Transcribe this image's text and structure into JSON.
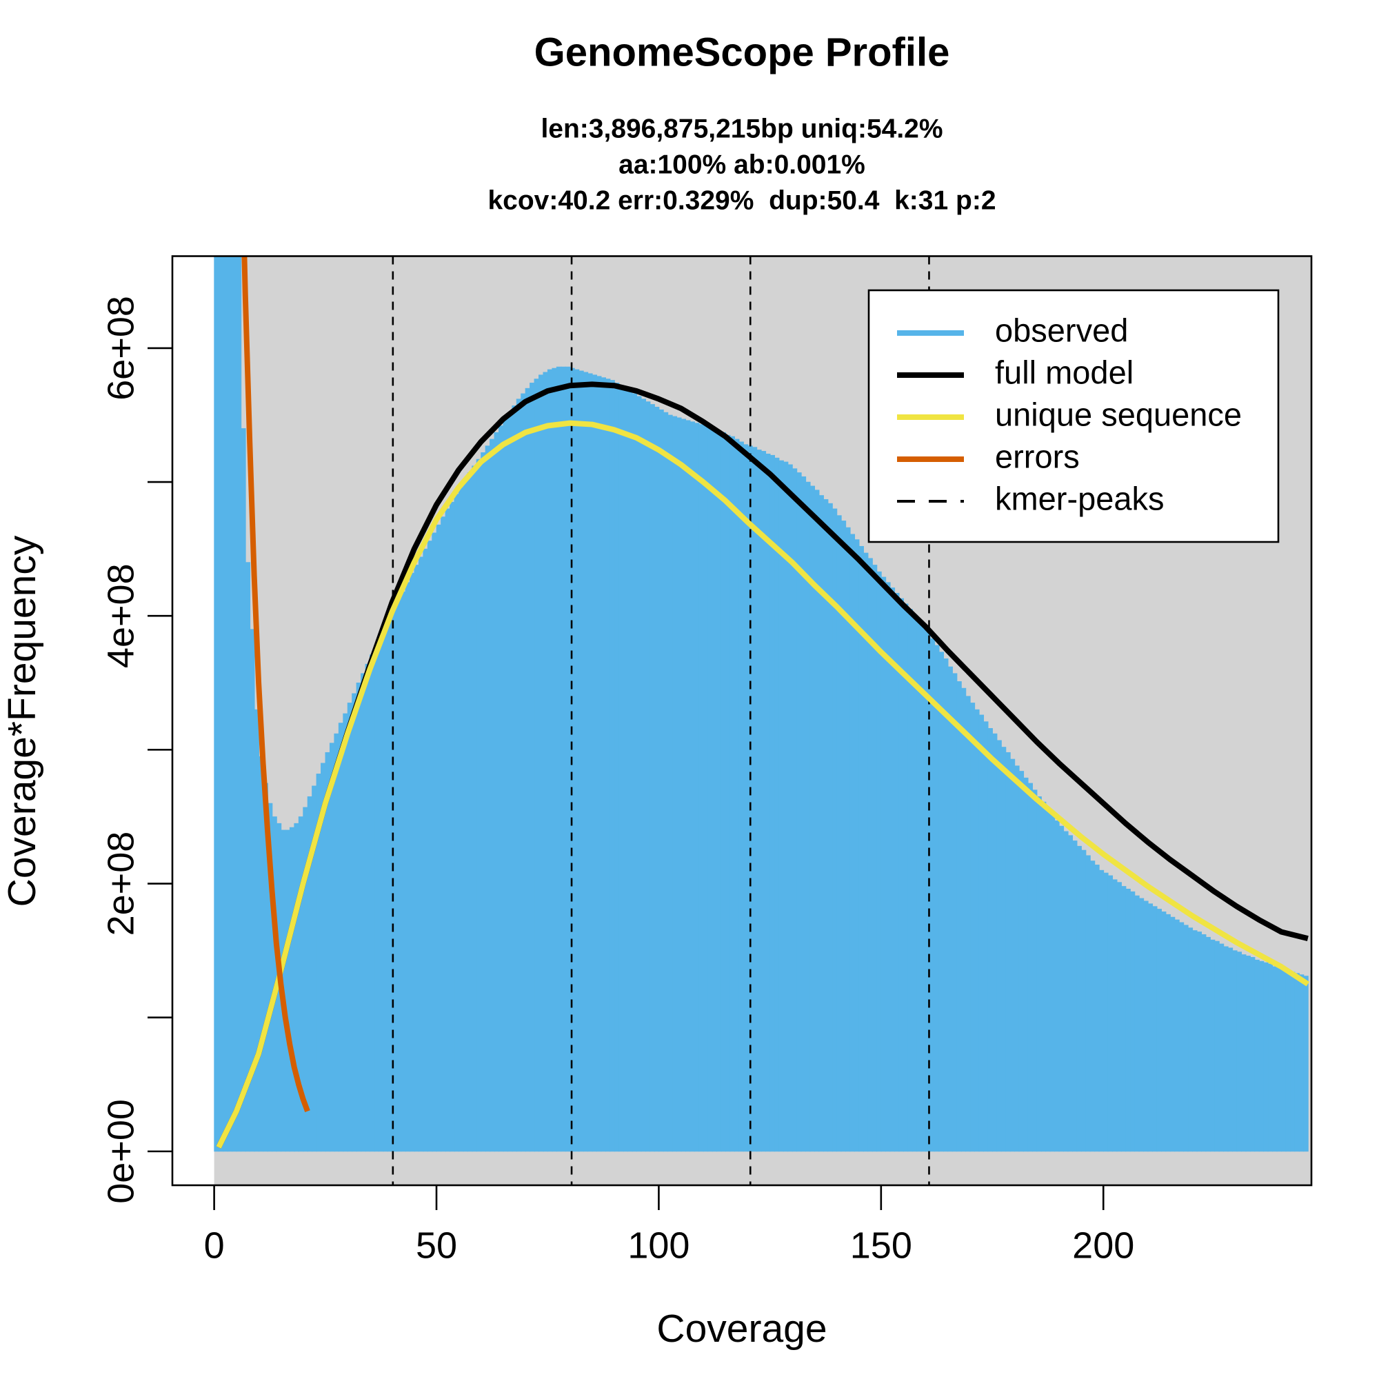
{
  "chart_data": {
    "type": "line",
    "title": "GenomeScope Profile",
    "subtitle": [
      "len:3,896,875,215bp uniq:54.2%",
      "aa:100% ab:0.001%",
      "kcov:40.2 err:0.329%  dup:50.4  k:31 p:2"
    ],
    "xlabel": "Coverage",
    "ylabel": "Coverage*Frequency",
    "xlim": [
      -9.4,
      246.8
    ],
    "ylim": [
      -25300000,
      668700000
    ],
    "xticks": [
      0,
      50,
      100,
      150,
      200
    ],
    "yticks": [
      {
        "value": 0,
        "label": "0e+00"
      },
      {
        "value": 100000000,
        "label": null
      },
      {
        "value": 200000000,
        "label": "2e+08"
      },
      {
        "value": 300000000,
        "label": null
      },
      {
        "value": 400000000,
        "label": "4e+08"
      },
      {
        "value": 500000000,
        "label": null
      },
      {
        "value": 600000000,
        "label": "6e+08"
      }
    ],
    "background": "#d3d3d3",
    "legend": "topright",
    "series": [
      {
        "name": "observed",
        "kind": "bar",
        "color": "#56B4E9",
        "x": [
          1,
          2,
          3,
          4,
          5,
          6,
          7,
          8,
          9,
          10,
          11,
          12,
          13,
          14,
          15,
          16,
          17,
          18,
          19,
          20,
          21,
          22,
          23,
          24,
          25,
          26,
          27,
          28,
          29,
          30,
          31,
          32,
          33,
          34,
          35,
          36,
          37,
          38,
          39,
          40,
          41,
          42,
          43,
          44,
          45,
          46,
          47,
          48,
          49,
          50,
          51,
          52,
          53,
          54,
          55,
          56,
          57,
          58,
          59,
          60,
          61,
          62,
          63,
          64,
          65,
          66,
          67,
          68,
          69,
          70,
          71,
          72,
          73,
          74,
          75,
          76,
          77,
          78,
          79,
          80,
          81,
          82,
          83,
          84,
          85,
          86,
          87,
          88,
          89,
          90,
          91,
          92,
          93,
          94,
          95,
          96,
          97,
          98,
          99,
          100,
          101,
          102,
          103,
          104,
          105,
          106,
          107,
          108,
          109,
          110,
          111,
          112,
          113,
          114,
          115,
          116,
          117,
          118,
          119,
          120,
          121,
          122,
          123,
          124,
          125,
          126,
          127,
          128,
          129,
          130,
          131,
          132,
          133,
          134,
          135,
          136,
          137,
          138,
          139,
          140,
          141,
          142,
          143,
          144,
          145,
          146,
          147,
          148,
          149,
          150,
          151,
          152,
          153,
          154,
          155,
          156,
          157,
          158,
          159,
          160,
          161,
          162,
          163,
          164,
          165,
          166,
          167,
          168,
          169,
          170,
          171,
          172,
          173,
          174,
          175,
          176,
          177,
          178,
          179,
          180,
          181,
          182,
          183,
          184,
          185,
          186,
          187,
          188,
          189,
          190,
          191,
          192,
          193,
          194,
          195,
          196,
          197,
          198,
          199,
          200,
          201,
          202,
          203,
          204,
          205,
          206,
          207,
          208,
          209,
          210,
          211,
          212,
          213,
          214,
          215,
          216,
          217,
          218,
          219,
          220,
          221,
          222,
          223,
          224,
          225,
          226,
          227,
          228,
          229,
          230,
          231,
          232,
          233,
          234,
          235,
          236,
          237,
          238,
          239,
          240,
          241,
          242,
          243,
          244,
          245,
          246
        ],
        "values": [
          700000000.0,
          700000000.0,
          700000000.0,
          700000000.0,
          700000000.0,
          700000000.0,
          540000000.0,
          440000000.0,
          390000000.0,
          330000000.0,
          295000000.0,
          275000000.0,
          260000000.0,
          250000000.0,
          245000000.0,
          240000000.0,
          240000000.0,
          242000000.0,
          245000000.0,
          250000000.0,
          257000000.0,
          265000000.0,
          273000000.0,
          282000000.0,
          290000000.0,
          298000000.0,
          305000000.0,
          312000000.0,
          320000000.0,
          327000000.0,
          335000000.0,
          342000000.0,
          350000000.0,
          357000000.0,
          364000000.0,
          371000000.0,
          378000000.0,
          385000000.0,
          392000000.0,
          398000000.0,
          405000000.0,
          412000000.0,
          418000000.0,
          425000000.0,
          432000000.0,
          438000000.0,
          444000000.0,
          450000000.0,
          456000000.0,
          462000000.0,
          468000000.0,
          474000000.0,
          480000000.0,
          485000000.0,
          491000000.0,
          496000000.0,
          502000000.0,
          507000000.0,
          512000000.0,
          517000000.0,
          522000000.0,
          527000000.0,
          532000000.0,
          537000000.0,
          542000000.0,
          547000000.0,
          552000000.0,
          557000000.0,
          562000000.0,
          566000000.0,
          570000000.0,
          574000000.0,
          577000000.0,
          580000000.0,
          582000000.0,
          584000000.0,
          585000000.0,
          586000000.0,
          586000000.0,
          586000000.0,
          585000000.0,
          584000000.0,
          583000000.0,
          582000000.0,
          581000000.0,
          580000000.0,
          579000000.0,
          578000000.0,
          577000000.0,
          576000000.0,
          574000000.0,
          572000000.0,
          570000000.0,
          568000000.0,
          566000000.0,
          564000000.0,
          562000000.0,
          560000000.0,
          558000000.0,
          556000000.0,
          554000000.0,
          552000000.0,
          550000000.0,
          549000000.0,
          548000000.0,
          547000000.0,
          546000000.0,
          545000000.0,
          544000000.0,
          543000000.0,
          542000000.0,
          541000000.0,
          540000000.0,
          538000000.0,
          537000000.0,
          535000000.0,
          534000000.0,
          532000000.0,
          530000000.0,
          528000000.0,
          527000000.0,
          526000000.0,
          524000000.0,
          523000000.0,
          521000000.0,
          520000000.0,
          518000000.0,
          516000000.0,
          515000000.0,
          513000000.0,
          510000000.0,
          507000000.0,
          504000000.0,
          500000000.0,
          497000000.0,
          494000000.0,
          490000000.0,
          487000000.0,
          484000000.0,
          480000000.0,
          475000000.0,
          471000000.0,
          466000000.0,
          461000000.0,
          457000000.0,
          452000000.0,
          447000000.0,
          443000000.0,
          438000000.0,
          433000000.0,
          429000000.0,
          425000000.0,
          421000000.0,
          417000000.0,
          413000000.0,
          409000000.0,
          405000000.0,
          401000000.0,
          397000000.0,
          393000000.0,
          388000000.0,
          383000000.0,
          378000000.0,
          373000000.0,
          368000000.0,
          362000000.0,
          357000000.0,
          351000000.0,
          346000000.0,
          340000000.0,
          335000000.0,
          330000000.0,
          326000000.0,
          321000000.0,
          316000000.0,
          312000000.0,
          307000000.0,
          302000000.0,
          298000000.0,
          293000000.0,
          288000000.0,
          284000000.0,
          279000000.0,
          275000000.0,
          270000000.0,
          265000000.0,
          261000000.0,
          256000000.0,
          252000000.0,
          247000000.0,
          243000000.0,
          239000000.0,
          236000000.0,
          232000000.0,
          228000000.0,
          225000000.0,
          221000000.0,
          217000000.0,
          214000000.0,
          210000000.0,
          208000000.0,
          206000000.0,
          203000000.0,
          201000000.0,
          198000000.0,
          196000000.0,
          194000000.0,
          191000000.0,
          189000000.0,
          187000000.0,
          185000000.0,
          183000000.0,
          181000000.0,
          179000000.0,
          177000000.0,
          175000000.0,
          173000000.0,
          171000000.0,
          169000000.0,
          167000000.0,
          165000000.0,
          164000000.0,
          162000000.0,
          160000000.0,
          158000000.0,
          157000000.0,
          155000000.0,
          153000000.0,
          152000000.0,
          150000000.0,
          149000000.0,
          147000000.0,
          146000000.0,
          145000000.0,
          143000000.0,
          142000000.0,
          141000000.0,
          140000000.0,
          138000000.0,
          137000000.0,
          136000000.0,
          135000000.0,
          134000000.0,
          133000000.0,
          132000000.0,
          131000000.0
        ]
      },
      {
        "name": "full model",
        "kind": "line",
        "color": "#000000",
        "x": [
          1,
          5,
          10,
          15,
          20,
          25,
          30,
          35,
          40,
          45,
          50,
          55,
          60,
          65,
          70,
          75,
          80,
          85,
          90,
          95,
          100,
          105,
          110,
          115,
          120,
          125,
          130,
          135,
          140,
          145,
          150,
          155,
          160,
          165,
          170,
          175,
          180,
          185,
          190,
          195,
          200,
          205,
          210,
          215,
          220,
          225,
          230,
          235,
          240,
          246
        ],
        "values": [
          3000000.0,
          30000000.0,
          73000000.0,
          135000000.0,
          200000000.0,
          260000000.0,
          313000000.0,
          363000000.0,
          410000000.0,
          450000000.0,
          483000000.0,
          509000000.0,
          530000000.0,
          547000000.0,
          560000000.0,
          568000000.0,
          572000000.0,
          573000000.0,
          572000000.0,
          568000000.0,
          562000000.0,
          555000000.0,
          545000000.0,
          534000000.0,
          520000000.0,
          506000000.0,
          490000000.0,
          474000000.0,
          458000000.0,
          442000000.0,
          425000000.0,
          408000000.0,
          392000000.0,
          374000000.0,
          357000000.0,
          340000000.0,
          323000000.0,
          306000000.0,
          290000000.0,
          275000000.0,
          260000000.0,
          245000000.0,
          231000000.0,
          218000000.0,
          206000000.0,
          194000000.0,
          183000000.0,
          173000000.0,
          164000000.0,
          159000000.0
        ]
      },
      {
        "name": "unique sequence",
        "kind": "line",
        "color": "#F0E442",
        "x": [
          1,
          5,
          10,
          15,
          20,
          25,
          30,
          35,
          40,
          45,
          50,
          55,
          60,
          65,
          70,
          75,
          80,
          85,
          90,
          95,
          100,
          105,
          110,
          115,
          120,
          125,
          130,
          135,
          140,
          145,
          150,
          155,
          160,
          165,
          170,
          175,
          180,
          185,
          190,
          195,
          200,
          205,
          210,
          215,
          220,
          225,
          230,
          235,
          240,
          246
        ],
        "values": [
          3000000.0,
          30000000.0,
          73000000.0,
          135000000.0,
          200000000.0,
          260000000.0,
          312000000.0,
          360000000.0,
          403000000.0,
          440000000.0,
          472000000.0,
          496000000.0,
          515000000.0,
          528000000.0,
          537000000.0,
          542000000.0,
          544000000.0,
          543000000.0,
          539000000.0,
          533000000.0,
          524000000.0,
          513000000.0,
          500000000.0,
          486000000.0,
          470000000.0,
          455000000.0,
          440000000.0,
          423000000.0,
          407000000.0,
          390000000.0,
          373000000.0,
          357000000.0,
          341000000.0,
          325000000.0,
          309000000.0,
          293000000.0,
          278000000.0,
          263000000.0,
          249000000.0,
          235000000.0,
          222000000.0,
          210000000.0,
          198000000.0,
          187000000.0,
          176000000.0,
          166000000.0,
          156000000.0,
          147000000.0,
          138000000.0,
          125000000.0
        ]
      },
      {
        "name": "errors",
        "kind": "line",
        "color": "#D55E00",
        "x": [
          6,
          7,
          8,
          9,
          10,
          11,
          12,
          13,
          14,
          15,
          16,
          17,
          18,
          19,
          20,
          21
        ],
        "values": [
          780000000.0,
          640000000.0,
          530000000.0,
          430000000.0,
          350000000.0,
          290000000.0,
          240000000.0,
          195000000.0,
          155000000.0,
          125000000.0,
          100000000.0,
          80000000.0,
          63000000.0,
          50000000.0,
          39000000.0,
          30000000.0
        ]
      }
    ],
    "peaks": {
      "name": "kmer-peaks",
      "color": "#000000",
      "x": [
        40.2,
        80.4,
        120.6,
        160.8
      ]
    }
  }
}
